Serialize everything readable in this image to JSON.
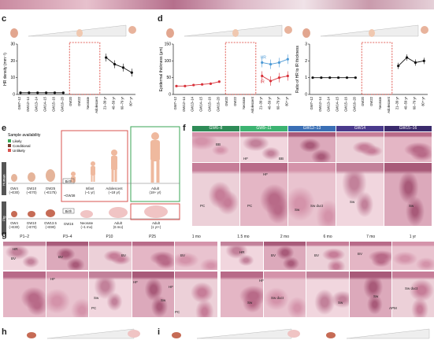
{
  "panels": {
    "c": "c",
    "d": "d",
    "e": "e",
    "f": "f",
    "g": "g",
    "h": "h",
    "i": "i"
  },
  "chart_data": [
    {
      "type": "line",
      "ylabel": "HR density (mm⁻²)",
      "ylim": [
        0,
        30
      ],
      "yticks": [
        "0",
        "10",
        "20",
        "30"
      ],
      "x": [
        "GW7–12",
        "GW12–14",
        "GW13–14",
        "GW14–15",
        "GW15–16",
        "GW16–20",
        "GW20",
        "GW22",
        "Neonate",
        "Adolescent",
        "21–39 yr",
        "40–59 yr",
        "60–79 yr",
        "80+ yr"
      ],
      "series": [
        {
          "name": "",
          "values": [
            1,
            1,
            1,
            1,
            1,
            1,
            null,
            null,
            null,
            null,
            null,
            null,
            null,
            null
          ]
        },
        {
          "name": "",
          "values": [
            null,
            null,
            null,
            null,
            null,
            null,
            null,
            null,
            null,
            null,
            22,
            18,
            16,
            13
          ]
        }
      ]
    },
    {
      "type": "line",
      "ylabel": "Epidermal thickness (μm)",
      "ylim": [
        0,
        150
      ],
      "yticks": [
        "0",
        "50",
        "100",
        "150"
      ],
      "x": [
        "GW7–12",
        "GW12–14",
        "GW13–14",
        "GW14–15",
        "GW15–16",
        "GW16–20",
        "GW20",
        "GW22",
        "Neonate",
        "Adolescent",
        "21–39 yr",
        "40–59 yr",
        "60–79 yr",
        "80+ yr"
      ],
      "series": [
        {
          "name": "",
          "values": [
            25,
            25,
            28,
            30,
            32,
            38,
            null,
            null,
            null,
            null,
            null,
            null,
            null,
            null
          ]
        },
        {
          "name": "HR",
          "values": [
            null,
            null,
            null,
            null,
            null,
            null,
            null,
            null,
            null,
            null,
            95,
            90,
            95,
            105
          ]
        },
        {
          "name": "IR",
          "values": [
            null,
            null,
            null,
            null,
            null,
            null,
            null,
            null,
            null,
            null,
            55,
            40,
            50,
            55
          ]
        }
      ]
    },
    {
      "type": "line",
      "ylabel": "Ratio of HR to IR thickness",
      "ylim": [
        0,
        3
      ],
      "yticks": [
        "0",
        "1",
        "2",
        "3"
      ],
      "x": [
        "GW7–12",
        "GW12–14",
        "GW13–14",
        "GW14–15",
        "GW15–16",
        "GW16–20",
        "GW20",
        "GW22",
        "Neonate",
        "Adolescent",
        "21–39 yr",
        "40–59 yr",
        "60–79 yr",
        "80+ yr"
      ],
      "series": [
        {
          "name": "",
          "values": [
            1,
            1,
            1,
            1,
            1,
            1,
            null,
            null,
            null,
            null,
            null,
            null,
            null,
            null
          ]
        },
        {
          "name": "",
          "values": [
            null,
            null,
            null,
            null,
            null,
            null,
            null,
            null,
            null,
            null,
            1.7,
            2.2,
            1.9,
            2.0
          ]
        }
      ]
    }
  ],
  "e": {
    "legend_title": "Sample availability",
    "legend": [
      {
        "label": "Likely",
        "color": "#3aa655"
      },
      {
        "label": "Conditional",
        "color": "#7a3b2e"
      },
      {
        "label": "Unlikely",
        "color": "#d9534f"
      }
    ],
    "human_tag": "Human",
    "pig_tag": "Pig",
    "human": [
      "GW4",
      "(~E30)",
      "GW10",
      "(~E70)",
      "GW25",
      "(~E175)",
      "Birth",
      "Infant",
      "(~1 yr)",
      "~GW38",
      "Adolescent",
      "(~18 yr)",
      "Adult",
      "(18+ yr)"
    ],
    "pig": [
      "GW4",
      "(~E30)",
      "GW10",
      "(~E70)",
      "GW13.5",
      "(~E90)",
      "Birth",
      "GW16",
      "Neonate",
      "(~1 mo)",
      "Adult",
      "(6 mo)",
      "Adult",
      "(1 yr+)"
    ]
  },
  "f": {
    "headers": [
      "GW6–8",
      "GW9–11",
      "GW12–13",
      "GW14",
      "GW15–16"
    ],
    "header_colors": [
      "#2e8b57",
      "#3cb371",
      "#3a6fb5",
      "#4a3a8c",
      "#3a2a6c"
    ],
    "labels": [
      "BB",
      "HF",
      "BB",
      "HF",
      "PC",
      "PC",
      "Sw",
      "Sw duct",
      "Sw",
      "Sw"
    ]
  },
  "g": {
    "headers": [
      "P1–2",
      "P3–4",
      "P10",
      "P25",
      "1 mo",
      "1.5 mo",
      "2 mo",
      "6 mo",
      "7 mo",
      "1 yr"
    ],
    "labels": [
      "HR",
      "BV",
      "BV",
      "BV",
      "BV",
      "HR",
      "BV",
      "BV",
      "BV",
      "HF",
      "HF",
      "Sw",
      "PC",
      "HF",
      "Sw",
      "PC",
      "HF",
      "Sw",
      "Sw duct",
      "Sw",
      "Sw",
      "APM",
      "Sw duct"
    ]
  },
  "bottom": {
    "h": "h",
    "i": "i"
  }
}
